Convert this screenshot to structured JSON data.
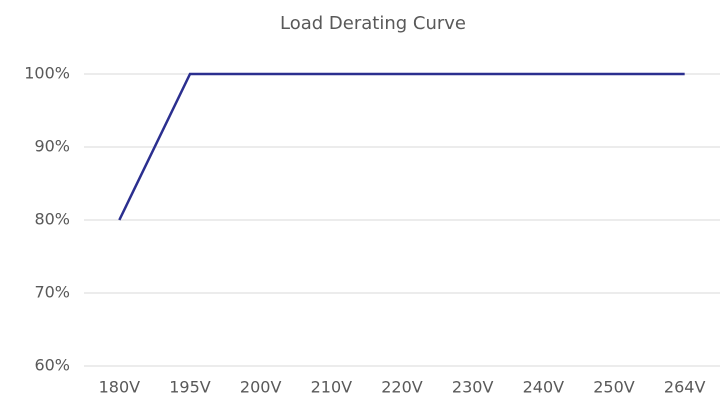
{
  "chart_data": {
    "type": "line",
    "title": "Load Derating Curve",
    "categories": [
      "180V",
      "195V",
      "200V",
      "210V",
      "220V",
      "230V",
      "240V",
      "250V",
      "264V"
    ],
    "values": [
      80,
      100,
      100,
      100,
      100,
      100,
      100,
      100,
      100
    ],
    "color": "#2b2f8f",
    "ylim": [
      60,
      100
    ],
    "yticks": [
      {
        "value": 60,
        "label": "60%"
      },
      {
        "value": 70,
        "label": "70%"
      },
      {
        "value": 80,
        "label": "80%"
      },
      {
        "value": 90,
        "label": "90%"
      },
      {
        "value": 100,
        "label": "100%"
      }
    ],
    "grid": true
  }
}
